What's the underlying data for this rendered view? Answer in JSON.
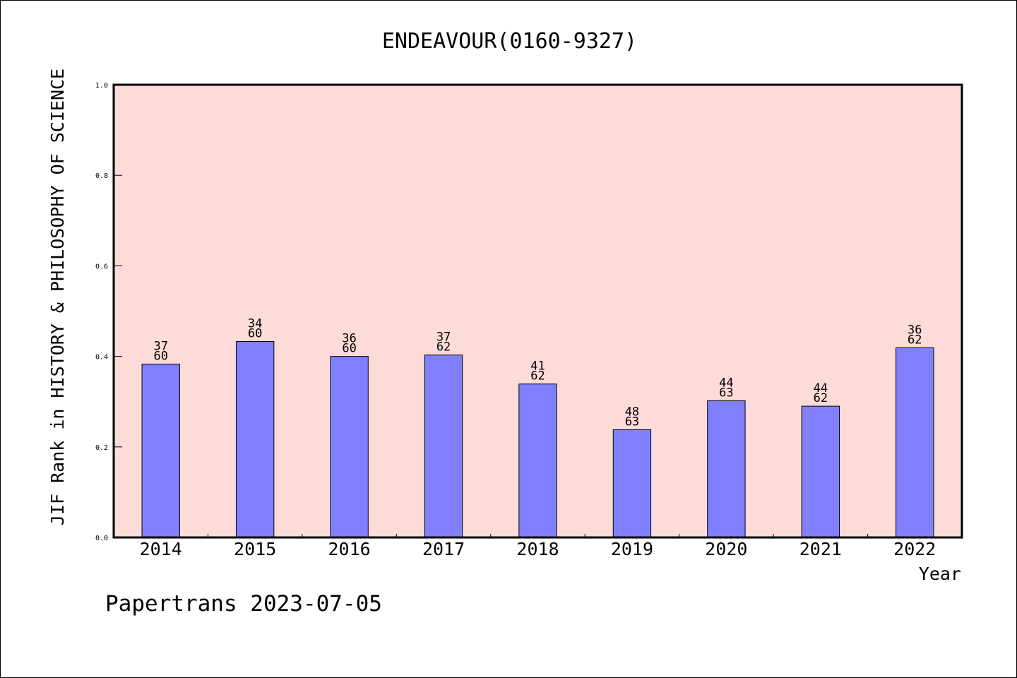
{
  "footer": "Papertrans 2023-07-05",
  "colors": {
    "plot_background": "#fddbd8",
    "bar_fill": "#8080ff",
    "bar_stroke": "#000000",
    "axis": "#000000"
  },
  "chart_data": {
    "type": "bar",
    "title": "ENDEAVOUR(0160-9327)",
    "xlabel": "Year",
    "ylabel": "JIF Rank in HISTORY & PHILOSOPHY OF SCIENCE",
    "ylim": [
      0,
      1.0
    ],
    "yticks": [
      "0.0",
      "0.2",
      "0.4",
      "0.6",
      "0.8",
      "1.0"
    ],
    "grid": false,
    "categories": [
      "2014",
      "2015",
      "2016",
      "2017",
      "2018",
      "2019",
      "2020",
      "2021",
      "2022"
    ],
    "values": [
      0.383,
      0.433,
      0.4,
      0.403,
      0.339,
      0.238,
      0.302,
      0.29,
      0.419
    ],
    "labels": [
      [
        "37",
        "60"
      ],
      [
        "34",
        "60"
      ],
      [
        "36",
        "60"
      ],
      [
        "37",
        "62"
      ],
      [
        "41",
        "62"
      ],
      [
        "48",
        "63"
      ],
      [
        "44",
        "63"
      ],
      [
        "44",
        "62"
      ],
      [
        "36",
        "62"
      ]
    ]
  }
}
